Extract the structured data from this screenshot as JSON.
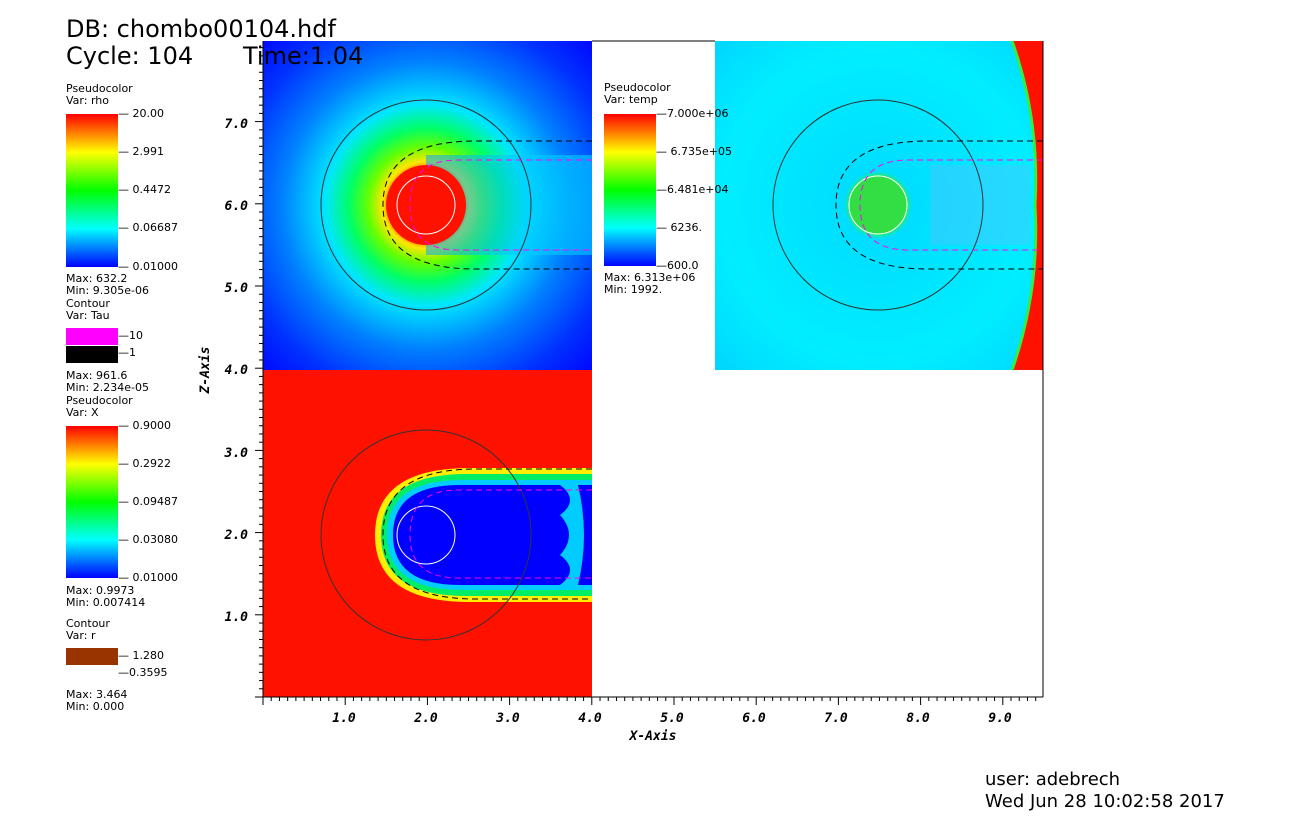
{
  "header": {
    "db": "DB: chombo00104.hdf",
    "cycle": "Cycle: 104",
    "time": "Time:1.04"
  },
  "legends": {
    "rho": {
      "plot": "Pseudocolor",
      "var": "Var: rho",
      "ticks": [
        "20.00",
        "2.991",
        "0.4472",
        "0.06687",
        "0.01000"
      ],
      "max": "Max: 632.2",
      "min": "Min: 9.305e-06"
    },
    "tau": {
      "plot": "Contour",
      "var": "Var: Tau",
      "levels": [
        "10",
        "1"
      ],
      "max": "Max: 961.6",
      "min": "Min: 2.234e-05",
      "colors": [
        "#ff00ff",
        "#000000"
      ]
    },
    "x": {
      "plot": "Pseudocolor",
      "var": "Var: X",
      "ticks": [
        "0.9000",
        "0.2922",
        "0.09487",
        "0.03080",
        "0.01000"
      ],
      "max": "Max: 0.9973",
      "min": "Min: 0.007414"
    },
    "r": {
      "plot": "Contour",
      "var": "Var: r",
      "levels": [
        "1.280",
        "0.3595"
      ],
      "max": "Max: 3.464",
      "min": "Min: 0.000",
      "color": "#993300"
    },
    "temp": {
      "plot": "Pseudocolor",
      "var": "Var: temp",
      "ticks": [
        "7.000e+06",
        "6.735e+05",
        "6.481e+04",
        "6236.",
        "600.0"
      ],
      "max": "Max: 6.313e+06",
      "min": "Min: 1992."
    }
  },
  "axes": {
    "x_title": "X-Axis",
    "z_title": "Z-Axis",
    "x_ticks": [
      "1.0",
      "2.0",
      "3.0",
      "4.0",
      "5.0",
      "6.0",
      "7.0",
      "8.0",
      "9.0"
    ],
    "z_ticks": [
      "7.0",
      "6.0",
      "5.0",
      "4.0",
      "3.0",
      "2.0",
      "1.0"
    ]
  },
  "footer": {
    "user": "user: adebrech",
    "date": "Wed Jun 28 10:02:58 2017"
  },
  "colors": {
    "rainbow": [
      "#ff0000",
      "#ffff00",
      "#00ff00",
      "#00ffff",
      "#0000ff"
    ],
    "tau_high": "#ff00ff",
    "tau_low": "#000000",
    "r_contour": "#993300"
  }
}
